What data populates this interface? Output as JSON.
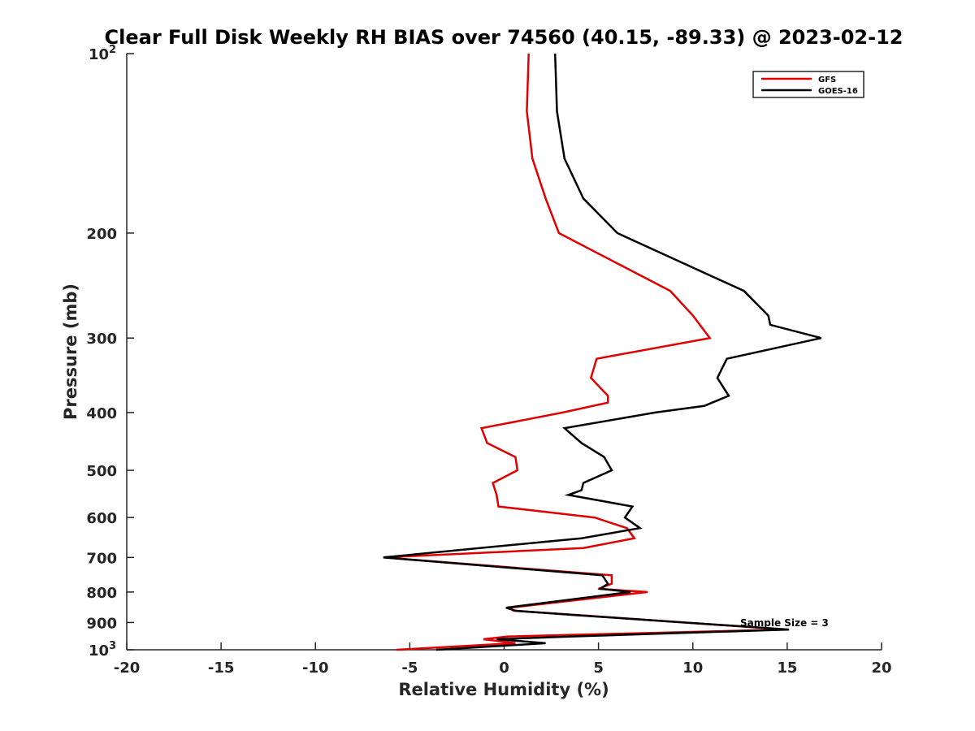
{
  "chart_data": {
    "type": "line",
    "title": "Clear Full Disk Weekly RH BIAS over 74560 (40.15, -89.33) @ 2023-02-12",
    "xlabel": "Relative Humidity (%)",
    "ylabel": "Pressure (mb)",
    "xlim": [
      -20,
      20
    ],
    "ylim": [
      100,
      1000
    ],
    "y_scale": "log",
    "y_reversed": true,
    "grid": false,
    "legend_position": "top-right",
    "x_ticks": [
      "-20",
      "-15",
      "-10",
      "-5",
      "0",
      "5",
      "10",
      "15",
      "20"
    ],
    "y_ticks": [
      {
        "value": 100,
        "label": "10",
        "exp": "2"
      },
      {
        "value": 200,
        "label": "200",
        "exp": ""
      },
      {
        "value": 300,
        "label": "300",
        "exp": ""
      },
      {
        "value": 400,
        "label": "400",
        "exp": ""
      },
      {
        "value": 500,
        "label": "500",
        "exp": ""
      },
      {
        "value": 600,
        "label": "600",
        "exp": ""
      },
      {
        "value": 700,
        "label": "700",
        "exp": ""
      },
      {
        "value": 800,
        "label": "800",
        "exp": ""
      },
      {
        "value": 900,
        "label": "900",
        "exp": ""
      },
      {
        "value": 1000,
        "label": "10",
        "exp": "3"
      }
    ],
    "annotation": "Sample Size = 3",
    "series": [
      {
        "name": "GFS",
        "color": "#e00000",
        "points": [
          [
            1.3,
            100
          ],
          [
            1.2,
            125
          ],
          [
            1.5,
            150
          ],
          [
            2.2,
            175
          ],
          [
            2.9,
            200
          ],
          [
            8.8,
            250
          ],
          [
            10.0,
            275
          ],
          [
            10.9,
            300
          ],
          [
            4.9,
            325
          ],
          [
            4.6,
            350
          ],
          [
            5.5,
            375
          ],
          [
            5.5,
            385
          ],
          [
            3.1,
            400
          ],
          [
            -1.2,
            425
          ],
          [
            -0.9,
            450
          ],
          [
            0.6,
            475
          ],
          [
            0.7,
            500
          ],
          [
            -0.6,
            525
          ],
          [
            -0.4,
            550
          ],
          [
            -0.3,
            575
          ],
          [
            4.8,
            600
          ],
          [
            6.5,
            625
          ],
          [
            6.9,
            650
          ],
          [
            4.2,
            675
          ],
          [
            -6.4,
            700
          ],
          [
            5.7,
            750
          ],
          [
            5.7,
            775
          ],
          [
            5.0,
            790
          ],
          [
            7.6,
            800
          ],
          [
            0.3,
            850
          ],
          [
            0.5,
            860
          ],
          [
            4.0,
            875
          ],
          [
            14.9,
            925
          ],
          [
            0.2,
            950
          ],
          [
            -1.1,
            960
          ],
          [
            0.6,
            975
          ],
          [
            -5.7,
            1000
          ]
        ]
      },
      {
        "name": "GOES-16",
        "color": "#000000",
        "points": [
          [
            2.7,
            100
          ],
          [
            2.8,
            125
          ],
          [
            3.2,
            150
          ],
          [
            4.2,
            175
          ],
          [
            6.0,
            200
          ],
          [
            12.7,
            250
          ],
          [
            14.0,
            275
          ],
          [
            14.1,
            285
          ],
          [
            16.8,
            300
          ],
          [
            11.8,
            325
          ],
          [
            11.3,
            350
          ],
          [
            11.9,
            375
          ],
          [
            10.6,
            390
          ],
          [
            8.0,
            400
          ],
          [
            3.2,
            425
          ],
          [
            4.1,
            450
          ],
          [
            5.3,
            475
          ],
          [
            5.7,
            500
          ],
          [
            4.2,
            525
          ],
          [
            4.1,
            540
          ],
          [
            3.4,
            550
          ],
          [
            6.8,
            575
          ],
          [
            6.4,
            600
          ],
          [
            7.2,
            625
          ],
          [
            4.1,
            650
          ],
          [
            -6.4,
            700
          ],
          [
            5.2,
            750
          ],
          [
            5.5,
            775
          ],
          [
            5.1,
            790
          ],
          [
            6.7,
            800
          ],
          [
            0.1,
            850
          ],
          [
            0.6,
            860
          ],
          [
            3.8,
            875
          ],
          [
            15.1,
            925
          ],
          [
            3.6,
            950
          ],
          [
            -0.4,
            960
          ],
          [
            2.2,
            975
          ],
          [
            -3.6,
            1000
          ]
        ]
      }
    ]
  }
}
